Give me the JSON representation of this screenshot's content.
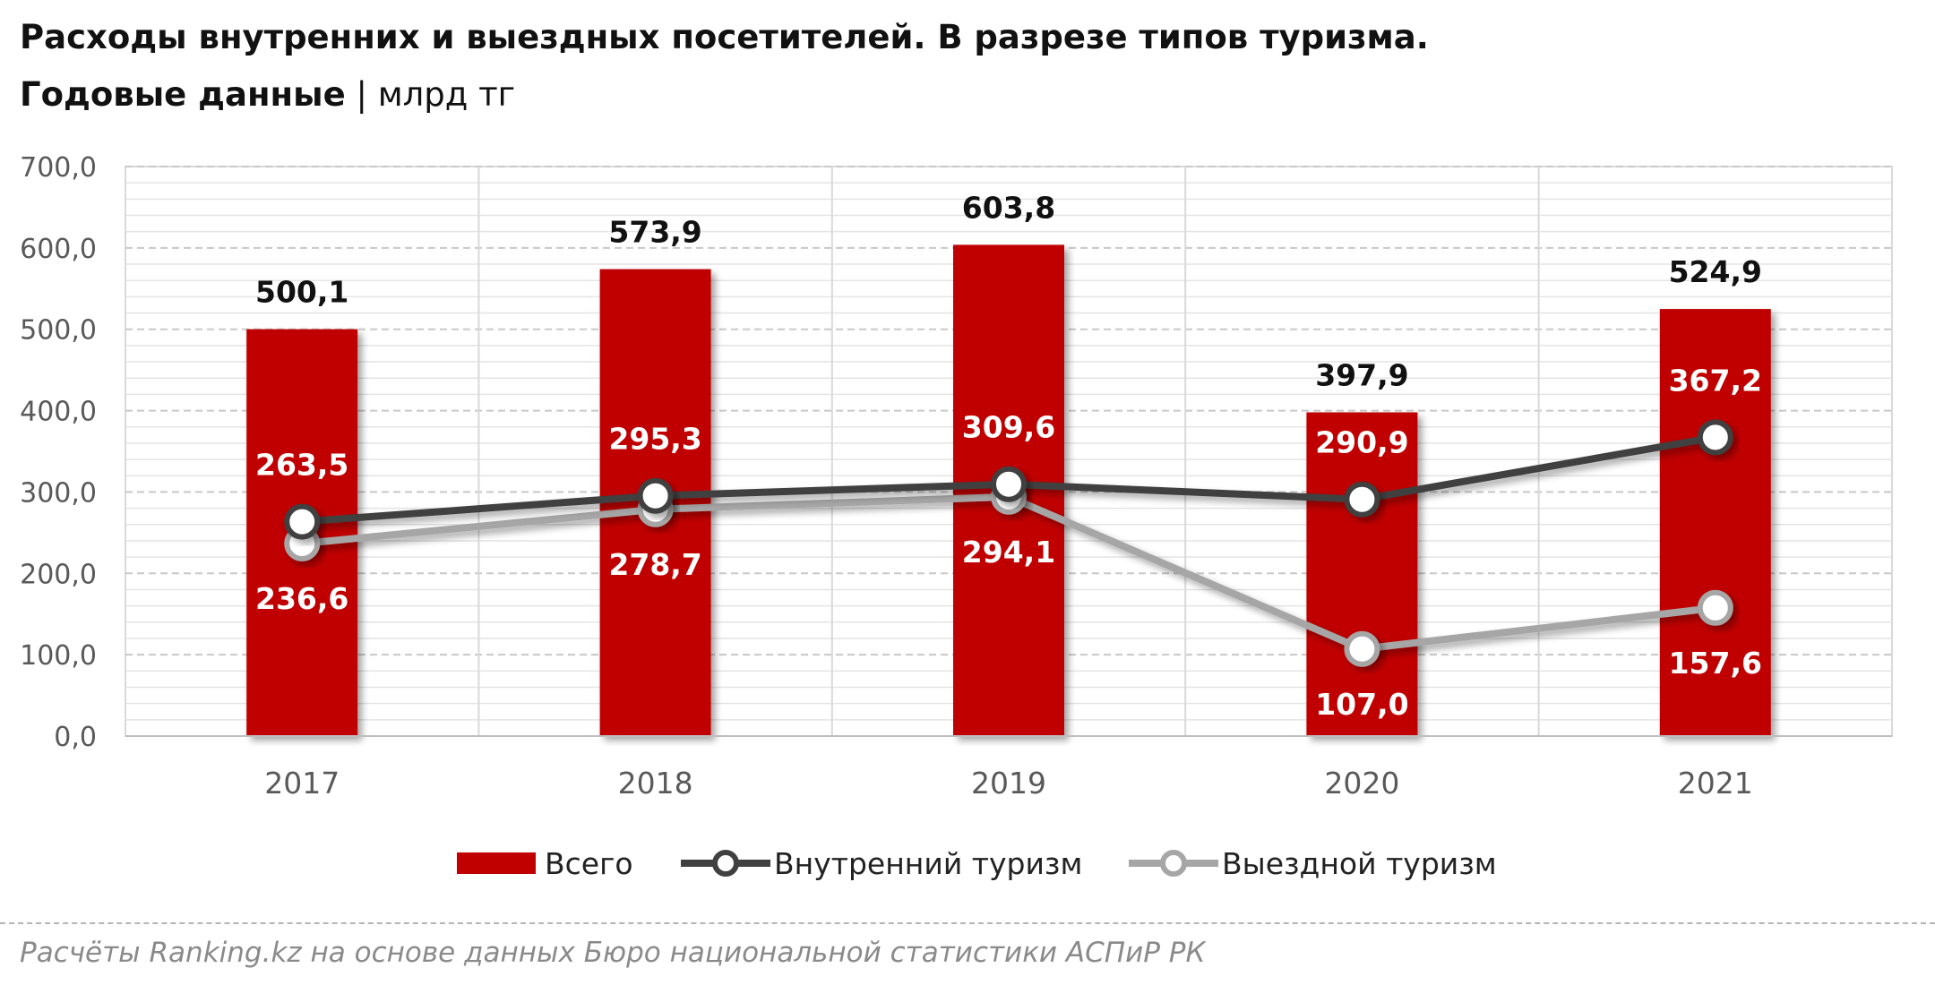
{
  "title_line1": "Расходы внутренних и выездных посетителей. В разрезе типов туризма.",
  "title_line2": "Годовые данные",
  "title_sep": " | ",
  "title_unit": "млрд тг",
  "source": "Расчёты Ranking.kz на основе данных Бюро национальной статистики АСПиР РК",
  "chart_data": {
    "type": "bar",
    "categories": [
      "2017",
      "2018",
      "2019",
      "2020",
      "2021"
    ],
    "ylim": [
      0,
      700
    ],
    "yticks": [
      "0,0",
      "100,0",
      "200,0",
      "300,0",
      "400,0",
      "500,0",
      "600,0",
      "700,0"
    ],
    "grid": true,
    "legend_position": "bottom",
    "series": [
      {
        "name": "Всего",
        "type": "bar",
        "color": "#c00000",
        "values": [
          500.1,
          573.9,
          603.8,
          397.9,
          524.9
        ],
        "labels": [
          "500,1",
          "573,9",
          "603,8",
          "397,9",
          "524,9"
        ]
      },
      {
        "name": "Внутренний туризм",
        "type": "line",
        "color": "#404040",
        "values": [
          263.5,
          295.3,
          309.6,
          290.9,
          367.2
        ],
        "labels": [
          "263,5",
          "295,3",
          "309,6",
          "290,9",
          "367,2"
        ]
      },
      {
        "name": "Выездной туризм",
        "type": "line",
        "color": "#a6a6a6",
        "values": [
          236.6,
          278.7,
          294.1,
          107.0,
          157.6
        ],
        "labels": [
          "236,6",
          "278,7",
          "294,1",
          "107,0",
          "157,6"
        ]
      }
    ]
  }
}
